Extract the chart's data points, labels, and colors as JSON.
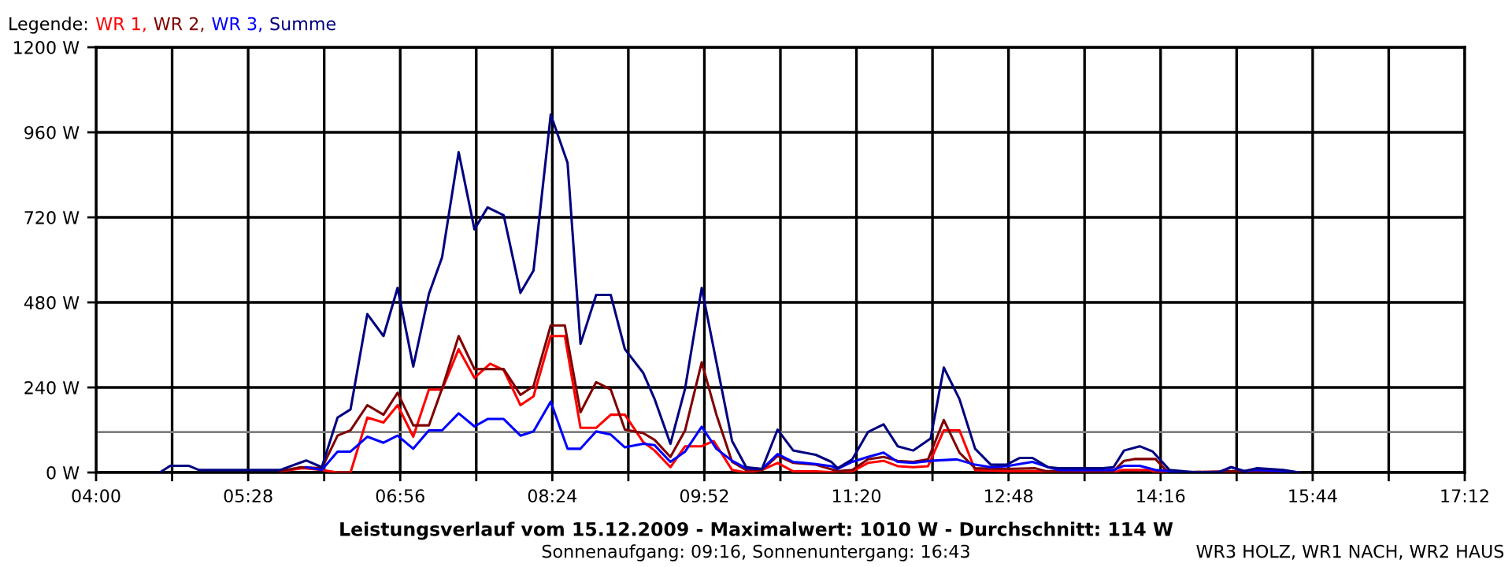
{
  "chart_data": {
    "type": "line",
    "title": "Leistungsverlauf vom 15.12.2009 - Maximalwert: 1010 W - Durchschnitt: 114 W",
    "subtitle": "Sonnenaufgang: 09:16, Sonnenuntergang: 16:43",
    "legend_title": "Legende:",
    "legend": "top left",
    "grid": true,
    "marker": "none",
    "line_style": "solid",
    "annotations": [
      "WR3 HOLZ, WR1 NACH, WR2 HAUS"
    ],
    "xlim": [
      4,
      17.2
    ],
    "ylim": [
      0,
      1200
    ],
    "xticks": [
      {
        "value": 4,
        "label": "04:00"
      },
      {
        "value": 4.7333,
        "label": null
      },
      {
        "value": 5.4667,
        "label": "05:28"
      },
      {
        "value": 6.2,
        "label": null
      },
      {
        "value": 6.9333,
        "label": "06:56"
      },
      {
        "value": 7.6667,
        "label": null
      },
      {
        "value": 8.4,
        "label": "08:24"
      },
      {
        "value": 9.1333,
        "label": null
      },
      {
        "value": 9.8667,
        "label": "09:52"
      },
      {
        "value": 10.6,
        "label": null
      },
      {
        "value": 11.3333,
        "label": "11:20"
      },
      {
        "value": 12.0667,
        "label": null
      },
      {
        "value": 12.8,
        "label": "12:48"
      },
      {
        "value": 13.5333,
        "label": null
      },
      {
        "value": 14.2667,
        "label": "14:16"
      },
      {
        "value": 15,
        "label": null
      },
      {
        "value": 15.7333,
        "label": "15:44"
      },
      {
        "value": 16.4667,
        "label": null
      },
      {
        "value": 17.2,
        "label": "17:12"
      }
    ],
    "yticks": [
      {
        "value": 0,
        "label": "0 W"
      },
      {
        "value": 240,
        "label": "240 W"
      },
      {
        "value": 480,
        "label": "480 W"
      },
      {
        "value": 720,
        "label": "720 W"
      },
      {
        "value": 960,
        "label": "960 W"
      },
      {
        "value": 1200,
        "label": "1200 W"
      }
    ],
    "ref_lines": [
      {
        "axis": "y",
        "value": 114,
        "color": "#808080"
      }
    ],
    "series": [
      {
        "name": "WR 1,",
        "color": "#ff0000",
        "x": [
          5.789,
          6.0,
          6.177,
          6.329,
          6.454,
          6.616,
          6.772,
          6.908,
          7.059,
          7.21,
          7.337,
          7.497,
          7.649,
          7.8,
          7.931,
          8.093,
          8.219,
          8.385,
          8.521,
          8.672,
          8.823,
          8.964,
          9.1,
          9.277,
          9.387,
          9.539,
          9.681,
          9.841,
          9.957,
          10.134,
          10.27,
          10.422,
          10.573,
          10.724,
          10.94,
          11.152,
          11.293,
          11.444,
          11.595,
          11.731,
          11.882,
          12.024,
          12.176,
          12.327,
          12.478,
          12.78,
          12.805,
          13.057,
          13.813,
          13.889,
          14.166,
          14.217,
          15.602
        ],
        "values": [
          4,
          12,
          7,
          0,
          0,
          155,
          141,
          190,
          101,
          234,
          234,
          348,
          267,
          307,
          289,
          190,
          215,
          385,
          385,
          126,
          126,
          163,
          163,
          86,
          62,
          15,
          74,
          74,
          89,
          7,
          0,
          7,
          27,
          3,
          3,
          0,
          3,
          27,
          33,
          18,
          15,
          18,
          119,
          119,
          7,
          4,
          4,
          4,
          0,
          7,
          7,
          0,
          0
        ]
      },
      {
        "name": "WR 2,",
        "color": "#800000",
        "x": [
          5.774,
          5.976,
          6.177,
          6.329,
          6.454,
          6.616,
          6.772,
          6.908,
          7.059,
          7.21,
          7.337,
          7.497,
          7.649,
          7.931,
          8.093,
          8.219,
          8.385,
          8.521,
          8.672,
          8.823,
          8.964,
          9.1,
          9.277,
          9.387,
          9.539,
          9.681,
          9.841,
          9.983,
          10.134,
          10.27,
          10.422,
          10.573,
          10.724,
          10.94,
          11.152,
          11.293,
          11.444,
          11.595,
          11.731,
          11.882,
          12.024,
          12.176,
          12.327,
          12.478,
          12.78,
          13.057,
          13.158,
          13.813,
          13.914,
          14.014,
          14.217,
          14.317,
          14.368,
          14.973,
          15.124,
          15.174,
          15.451,
          15.602
        ],
        "values": [
          4,
          15,
          12,
          104,
          119,
          190,
          163,
          225,
          133,
          133,
          237,
          385,
          292,
          292,
          219,
          244,
          415,
          415,
          170,
          255,
          234,
          121,
          111,
          92,
          44,
          119,
          311,
          163,
          30,
          7,
          7,
          47,
          27,
          22,
          4,
          7,
          37,
          44,
          33,
          30,
          37,
          148,
          56,
          12,
          10,
          12,
          4,
          4,
          33,
          38,
          38,
          7,
          0,
          4,
          0,
          3,
          3,
          0
        ]
      },
      {
        "name": "WR 3,",
        "color": "#0000ff",
        "x": [
          6.026,
          6.177,
          6.329,
          6.454,
          6.616,
          6.772,
          6.908,
          7.059,
          7.21,
          7.337,
          7.497,
          7.649,
          7.776,
          7.931,
          8.093,
          8.219,
          8.385,
          8.547,
          8.672,
          8.823,
          8.964,
          9.1,
          9.277,
          9.387,
          9.539,
          9.681,
          9.841,
          9.983,
          10.134,
          10.27,
          10.422,
          10.573,
          10.724,
          10.94,
          11.091,
          11.152,
          11.293,
          11.444,
          11.595,
          11.731,
          11.882,
          12.049,
          12.301,
          12.478,
          12.629,
          12.78,
          13.031,
          13.183,
          13.284,
          13.813,
          13.914,
          14.065,
          14.217,
          14.353,
          14.619,
          14.822,
          14.947,
          15.073,
          15.199,
          15.451,
          15.602
        ],
        "values": [
          15,
          7,
          59,
          59,
          101,
          84,
          104,
          67,
          119,
          119,
          167,
          130,
          151,
          151,
          104,
          116,
          200,
          67,
          67,
          116,
          107,
          71,
          81,
          77,
          30,
          59,
          129,
          67,
          33,
          12,
          10,
          52,
          30,
          24,
          18,
          10,
          30,
          44,
          56,
          30,
          27,
          33,
          37,
          22,
          15,
          18,
          30,
          15,
          7,
          7,
          19,
          19,
          7,
          4,
          0,
          0,
          15,
          4,
          7,
          4,
          0
        ]
      },
      {
        "name": "Summe",
        "color": "#000080",
        "x": [
          4.615,
          4.715,
          4.892,
          4.993,
          5.774,
          6.026,
          6.177,
          6.329,
          6.454,
          6.616,
          6.772,
          6.908,
          7.059,
          7.21,
          7.337,
          7.497,
          7.649,
          7.776,
          7.931,
          8.093,
          8.219,
          8.385,
          8.547,
          8.672,
          8.823,
          8.964,
          9.1,
          9.277,
          9.387,
          9.539,
          9.681,
          9.841,
          9.983,
          10.134,
          10.27,
          10.422,
          10.573,
          10.724,
          10.94,
          11.091,
          11.152,
          11.293,
          11.444,
          11.595,
          11.731,
          11.882,
          12.049,
          12.176,
          12.327,
          12.478,
          12.629,
          12.78,
          12.906,
          13.031,
          13.183,
          13.284,
          13.712,
          13.813,
          13.914,
          14.065,
          14.191,
          14.353,
          14.619,
          14.822,
          14.947,
          15.073,
          15.199,
          15.451,
          15.602
        ],
        "values": [
          0,
          19,
          19,
          7,
          7,
          34,
          15,
          155,
          178,
          447,
          385,
          521,
          299,
          504,
          607,
          904,
          686,
          748,
          726,
          507,
          570,
          1010,
          874,
          363,
          501,
          501,
          348,
          281,
          207,
          81,
          237,
          521,
          311,
          89,
          15,
          10,
          121,
          62,
          50,
          30,
          12,
          37,
          114,
          136,
          74,
          62,
          96,
          296,
          207,
          67,
          22,
          22,
          41,
          41,
          15,
          12,
          12,
          15,
          62,
          74,
          59,
          7,
          0,
          0,
          15,
          4,
          12,
          7,
          0
        ]
      }
    ]
  }
}
